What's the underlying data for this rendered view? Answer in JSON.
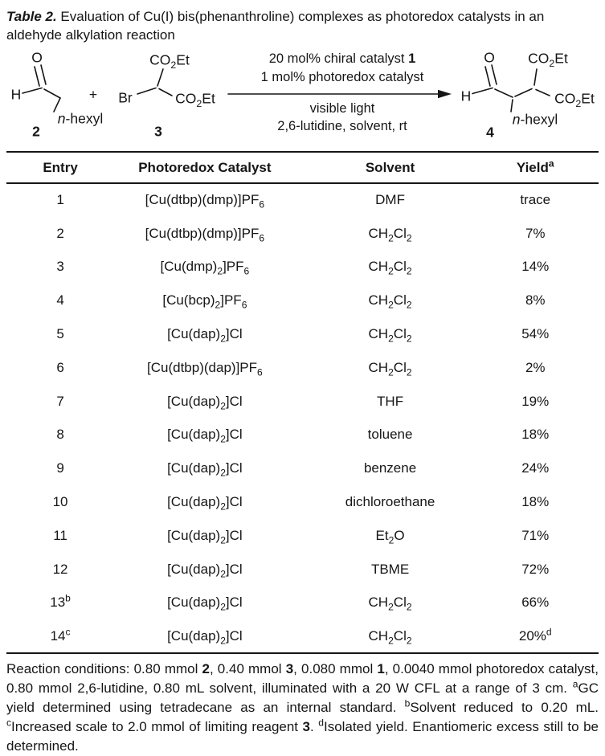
{
  "title": {
    "label": "Table 2.",
    "text": " Evaluation of Cu(I) bis(phenanthroline) complexes as photoredox catalysts in an aldehyde alkylation reaction"
  },
  "scheme": {
    "reactant_aldehyde": {
      "o": "O",
      "h": "H",
      "substituent": "/n/-hexyl",
      "number": "2"
    },
    "plus": "+",
    "reactant_bromomalonate": {
      "ester_top": "CO~2~Et",
      "br": "Br",
      "ester_right": "CO~2~Et",
      "number": "3"
    },
    "conditions": {
      "above_line1": "20 mol% chiral catalyst *1*",
      "above_line2": "1 mol% photoredox catalyst",
      "below_line1": "visible light",
      "below_line2": "2,6-lutidine, solvent, rt"
    },
    "product": {
      "o": "O",
      "h": "H",
      "ester_top": "CO~2~Et",
      "ester_right": "CO~2~Et",
      "substituent": "/n/-hexyl",
      "number": "4"
    }
  },
  "table": {
    "headers": {
      "entry": "Entry",
      "catalyst": "Photoredox Catalyst",
      "solvent": "Solvent",
      "yield": "Yield^a^"
    },
    "rows": [
      {
        "entry": "1",
        "catalyst": "[Cu(dtbp)(dmp)]PF~6~",
        "solvent": "DMF",
        "yield": "trace"
      },
      {
        "entry": "2",
        "catalyst": "[Cu(dtbp)(dmp)]PF~6~",
        "solvent": "CH~2~Cl~2~",
        "yield": "7%"
      },
      {
        "entry": "3",
        "catalyst": "[Cu(dmp)~2~]PF~6~",
        "solvent": "CH~2~Cl~2~",
        "yield": "14%"
      },
      {
        "entry": "4",
        "catalyst": "[Cu(bcp)~2~]PF~6~",
        "solvent": "CH~2~Cl~2~",
        "yield": "8%"
      },
      {
        "entry": "5",
        "catalyst": "[Cu(dap)~2~]Cl",
        "solvent": "CH~2~Cl~2~",
        "yield": "54%"
      },
      {
        "entry": "6",
        "catalyst": "[Cu(dtbp)(dap)]PF~6~",
        "solvent": "CH~2~Cl~2~",
        "yield": "2%"
      },
      {
        "entry": "7",
        "catalyst": "[Cu(dap)~2~]Cl",
        "solvent": "THF",
        "yield": "19%"
      },
      {
        "entry": "8",
        "catalyst": "[Cu(dap)~2~]Cl",
        "solvent": "toluene",
        "yield": "18%"
      },
      {
        "entry": "9",
        "catalyst": "[Cu(dap)~2~]Cl",
        "solvent": "benzene",
        "yield": "24%"
      },
      {
        "entry": "10",
        "catalyst": "[Cu(dap)~2~]Cl",
        "solvent": "dichloroethane",
        "yield": "18%"
      },
      {
        "entry": "11",
        "catalyst": "[Cu(dap)~2~]Cl",
        "solvent": "Et~2~O",
        "yield": "71%"
      },
      {
        "entry": "12",
        "catalyst": "[Cu(dap)~2~]Cl",
        "solvent": "TBME",
        "yield": "72%"
      },
      {
        "entry": "13^b^",
        "catalyst": "[Cu(dap)~2~]Cl",
        "solvent": "CH~2~Cl~2~",
        "yield": "66%"
      },
      {
        "entry": "14^c^",
        "catalyst": "[Cu(dap)~2~]Cl",
        "solvent": "CH~2~Cl~2~",
        "yield": "20%^d^"
      }
    ]
  },
  "footnote": "Reaction conditions: 0.80 mmol *2*, 0.40 mmol *3*, 0.080 mmol *1*, 0.0040 mmol photoredox catalyst, 0.80 mmol 2,6-lutidine, 0.80 mL solvent, illuminated with a 20 W CFL at a range of 3 cm. ^a^GC yield determined using tetradecane as an internal standard. ^b^Solvent reduced to 0.20 mL. ^c^Increased scale to 2.0 mmol of limiting reagent *3*. ^d^Isolated yield. Enantiomeric excess still to be determined.",
  "colors": {
    "text": "#161616",
    "rule": "#161616",
    "background": "#ffffff"
  }
}
